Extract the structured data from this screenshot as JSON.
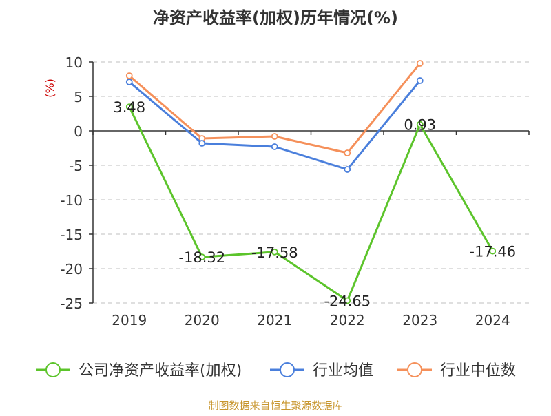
{
  "chart_data": {
    "type": "line",
    "title": "净资产收益率(加权)历年情况(%)",
    "ylabel": "(%)",
    "xlabel": "",
    "categories": [
      "2019",
      "2020",
      "2021",
      "2022",
      "2023",
      "2024"
    ],
    "ylim": [
      -25,
      10
    ],
    "yticks": [
      10,
      5,
      0,
      -5,
      -10,
      -15,
      -20,
      -25
    ],
    "grid": true,
    "legend_position": "bottom",
    "series": [
      {
        "name": "公司净资产收益率(加权)",
        "color": "#5cc42b",
        "values": [
          3.48,
          -18.32,
          -17.58,
          -24.65,
          0.93,
          -17.46
        ],
        "labels": [
          "3.48",
          "-18.32",
          "-17.58",
          "-24.65",
          "0.93",
          "-17.46"
        ]
      },
      {
        "name": "行业均值",
        "color": "#4a7fdc",
        "values": [
          7.1,
          -1.8,
          -2.3,
          -5.6,
          7.3,
          null
        ]
      },
      {
        "name": "行业中位数",
        "color": "#f5905a",
        "values": [
          8.0,
          -1.1,
          -0.8,
          -3.2,
          9.8,
          null
        ]
      }
    ]
  },
  "source_note": "制图数据来自恒生聚源数据库",
  "colors": {
    "title": "#333333",
    "ylabel": "#cc0000",
    "axis_text": "#333333",
    "grid": "#cccccc",
    "source": "#c8962e"
  }
}
